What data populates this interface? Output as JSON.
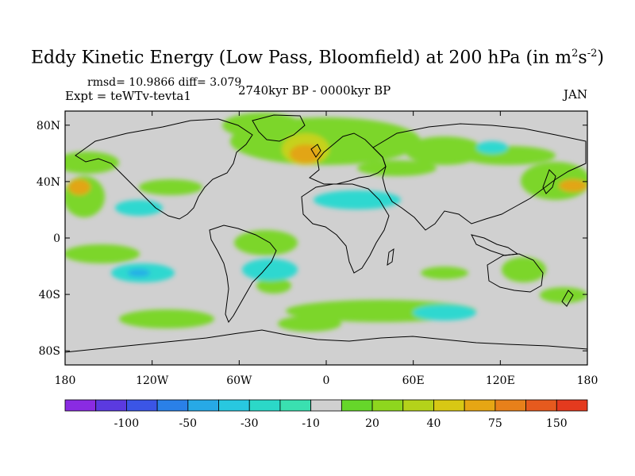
{
  "title": {
    "main": "Eddy Kinetic Energy (Low Pass, Bloomfield) at 200 hPa (in m",
    "sup1": "2",
    "mid": "s",
    "sup2": "-2",
    "end": ")"
  },
  "stats": "rmsd= 10.9866 diff= 3.079",
  "experiment": "Expt = teWTv-tevta1",
  "period": "2740kyr BP - 0000kyr BP",
  "month": "JAN",
  "map": {
    "background_color": "#d0d0d0",
    "lat_labels": [
      {
        "lat": 80,
        "label": "80N"
      },
      {
        "lat": 40,
        "label": "40N"
      },
      {
        "lat": 0,
        "label": "0"
      },
      {
        "lat": -40,
        "label": "40S"
      },
      {
        "lat": -80,
        "label": "80S"
      }
    ],
    "lon_labels": [
      {
        "lon": -180,
        "label": "180"
      },
      {
        "lon": -120,
        "label": "120W"
      },
      {
        "lon": -60,
        "label": "60W"
      },
      {
        "lon": 0,
        "label": "0"
      },
      {
        "lon": 60,
        "label": "60E"
      },
      {
        "lon": 120,
        "label": "120E"
      },
      {
        "lon": 180,
        "label": "180"
      }
    ]
  },
  "colorbar": {
    "colors": [
      "#8a2be2",
      "#5b3ae0",
      "#3b55e6",
      "#2a80e8",
      "#27a9e6",
      "#28c8e0",
      "#2bd8c8",
      "#3ae0b0",
      "#d0d0d0",
      "#66d62a",
      "#8ed61e",
      "#b4d21a",
      "#d8c814",
      "#e6a614",
      "#e8801a",
      "#e65a1e",
      "#e43a1e"
    ],
    "labels": [
      {
        "after_index": 1,
        "label": "-100"
      },
      {
        "after_index": 3,
        "label": "-50"
      },
      {
        "after_index": 5,
        "label": "-30"
      },
      {
        "after_index": 7,
        "label": "-10"
      },
      {
        "after_index": 9,
        "label": "20"
      },
      {
        "after_index": 11,
        "label": "40"
      },
      {
        "after_index": 13,
        "label": "75"
      },
      {
        "after_index": 15,
        "label": "150"
      }
    ]
  }
}
